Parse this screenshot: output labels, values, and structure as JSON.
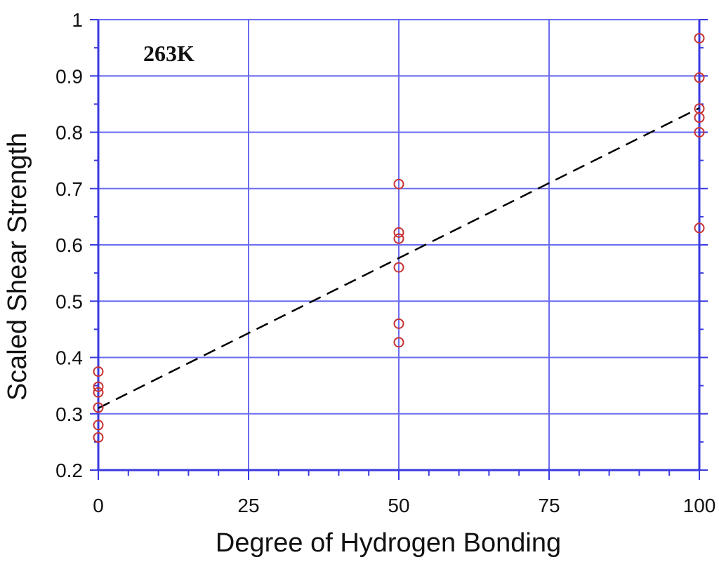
{
  "chart_data": {
    "type": "scatter",
    "annotation": "263K",
    "xlabel": "Degree of Hydrogen Bonding",
    "ylabel": "Scaled Shear Strength",
    "xlim": [
      0,
      100
    ],
    "ylim": [
      0.2,
      1.0
    ],
    "x_ticks": [
      "0",
      "25",
      "50",
      "75",
      "100"
    ],
    "x_tick_values": [
      0,
      25,
      50,
      75,
      100
    ],
    "y_ticks": [
      "0.2",
      "0.3",
      "0.4",
      "0.5",
      "0.6",
      "0.7",
      "0.8",
      "0.9",
      "1"
    ],
    "y_tick_values": [
      0.2,
      0.3,
      0.4,
      0.5,
      0.6,
      0.7,
      0.8,
      0.9,
      1.0
    ],
    "grid": true,
    "colors": {
      "grid": "#6b6bf0",
      "axis": "#3a3ae0",
      "points": "#c83232",
      "fit_line": "#000000"
    },
    "points": [
      {
        "x": 0,
        "y": 0.375
      },
      {
        "x": 0,
        "y": 0.348
      },
      {
        "x": 0,
        "y": 0.338
      },
      {
        "x": 0,
        "y": 0.311
      },
      {
        "x": 0,
        "y": 0.28
      },
      {
        "x": 0,
        "y": 0.258
      },
      {
        "x": 50,
        "y": 0.708
      },
      {
        "x": 50,
        "y": 0.622
      },
      {
        "x": 50,
        "y": 0.611
      },
      {
        "x": 50,
        "y": 0.56
      },
      {
        "x": 50,
        "y": 0.46
      },
      {
        "x": 50,
        "y": 0.427
      },
      {
        "x": 100,
        "y": 0.967
      },
      {
        "x": 100,
        "y": 0.897
      },
      {
        "x": 100,
        "y": 0.842
      },
      {
        "x": 100,
        "y": 0.826
      },
      {
        "x": 100,
        "y": 0.8
      },
      {
        "x": 100,
        "y": 0.63
      }
    ],
    "fit_line": {
      "style": "dashed",
      "x": [
        0,
        100
      ],
      "y": [
        0.31,
        0.843
      ]
    }
  }
}
